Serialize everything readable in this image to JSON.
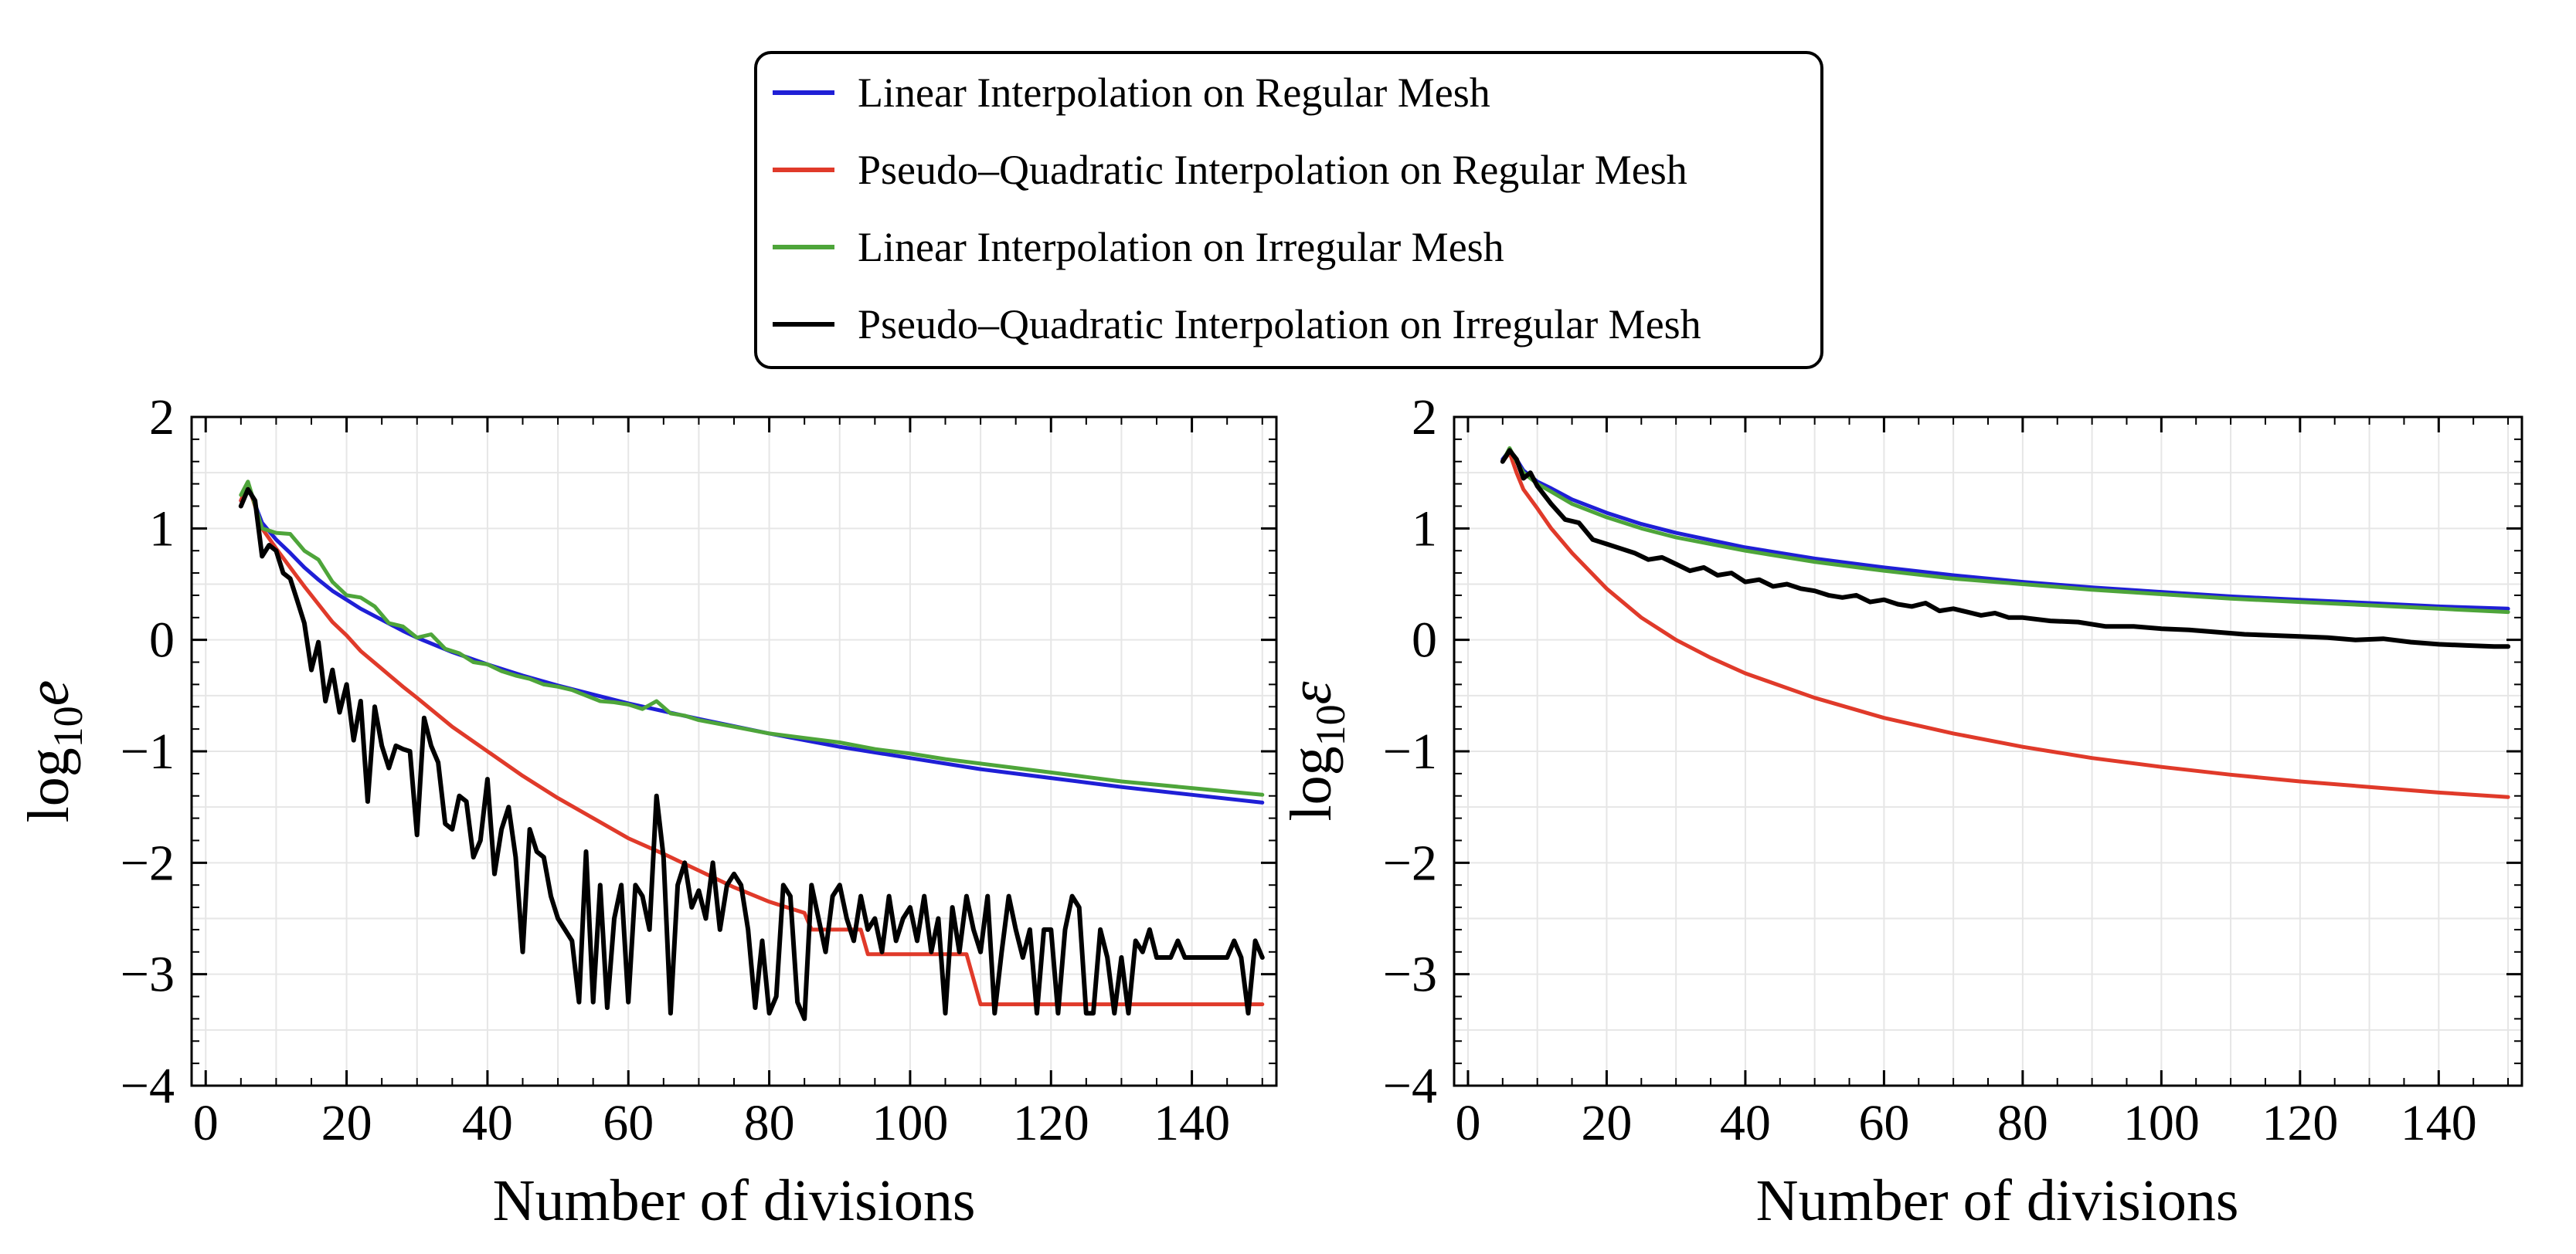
{
  "legend": {
    "items": [
      {
        "label": "Linear Interpolation on Regular Mesh",
        "color": "#1f1fd6"
      },
      {
        "label": "Pseudo–Quadratic Interpolation on Regular Mesh",
        "color": "#e03a2a"
      },
      {
        "label": "Linear Interpolation on Irregular Mesh",
        "color": "#4ea53a"
      },
      {
        "label": "Pseudo–Quadratic Interpolation on Irregular Mesh",
        "color": "#000000"
      }
    ]
  },
  "chart_data": [
    {
      "type": "line",
      "title": "",
      "xlabel": "Number of divisions",
      "ylabel_base": "log",
      "ylabel_sub": "10",
      "ylabel_var": "e",
      "xlim": [
        -2,
        152
      ],
      "ylim": [
        -4,
        2
      ],
      "xticks": [
        0,
        20,
        40,
        60,
        80,
        100,
        120,
        140
      ],
      "yticks": [
        2,
        1,
        0,
        -1,
        -2,
        -3,
        -4
      ],
      "ytick_labels": [
        "2",
        "1",
        "0",
        "−1",
        "−2",
        "−3",
        "−4"
      ],
      "grid": true,
      "series": [
        {
          "name": "Linear Interpolation on Regular Mesh",
          "color": "#1f1fd6",
          "x": [
            5,
            6,
            8,
            10,
            12,
            14,
            16,
            18,
            20,
            22,
            25,
            28,
            30,
            35,
            40,
            45,
            50,
            55,
            60,
            70,
            80,
            90,
            100,
            110,
            120,
            130,
            140,
            150
          ],
          "y": [
            1.25,
            1.38,
            1.05,
            0.9,
            0.78,
            0.65,
            0.54,
            0.44,
            0.36,
            0.28,
            0.18,
            0.08,
            0.02,
            -0.11,
            -0.22,
            -0.32,
            -0.41,
            -0.49,
            -0.57,
            -0.71,
            -0.84,
            -0.96,
            -1.06,
            -1.16,
            -1.24,
            -1.32,
            -1.39,
            -1.46
          ]
        },
        {
          "name": "Pseudo–Quadratic Interpolation on Regular Mesh",
          "color": "#e03a2a",
          "x": [
            5,
            6,
            8,
            10,
            12,
            14,
            16,
            18,
            20,
            22,
            25,
            28,
            30,
            35,
            40,
            45,
            50,
            55,
            60,
            65,
            70,
            75,
            80,
            85,
            86,
            90,
            93,
            94,
            100,
            108,
            110,
            120,
            130,
            140,
            150
          ],
          "y": [
            1.25,
            1.4,
            1.0,
            0.82,
            0.65,
            0.48,
            0.32,
            0.16,
            0.04,
            -0.1,
            -0.26,
            -0.42,
            -0.52,
            -0.78,
            -1.0,
            -1.22,
            -1.42,
            -1.6,
            -1.78,
            -1.92,
            -2.07,
            -2.22,
            -2.35,
            -2.45,
            -2.6,
            -2.6,
            -2.6,
            -2.82,
            -2.82,
            -2.82,
            -3.27,
            -3.27,
            -3.27,
            -3.27,
            -3.27
          ]
        },
        {
          "name": "Linear Interpolation on Irregular Mesh",
          "color": "#4ea53a",
          "x": [
            5,
            6,
            8,
            10,
            12,
            14,
            16,
            18,
            20,
            22,
            24,
            26,
            28,
            30,
            32,
            34,
            36,
            38,
            40,
            42,
            44,
            46,
            48,
            50,
            52,
            54,
            56,
            58,
            60,
            62,
            64,
            66,
            68,
            70,
            75,
            80,
            85,
            90,
            95,
            100,
            105,
            110,
            115,
            120,
            125,
            130,
            135,
            140,
            145,
            150
          ],
          "y": [
            1.3,
            1.42,
            1.0,
            0.96,
            0.95,
            0.8,
            0.72,
            0.52,
            0.4,
            0.38,
            0.3,
            0.15,
            0.12,
            0.02,
            0.05,
            -0.08,
            -0.12,
            -0.2,
            -0.22,
            -0.28,
            -0.32,
            -0.35,
            -0.4,
            -0.42,
            -0.45,
            -0.5,
            -0.55,
            -0.56,
            -0.58,
            -0.62,
            -0.55,
            -0.66,
            -0.68,
            -0.72,
            -0.78,
            -0.84,
            -0.88,
            -0.92,
            -0.98,
            -1.02,
            -1.07,
            -1.11,
            -1.15,
            -1.19,
            -1.23,
            -1.27,
            -1.3,
            -1.33,
            -1.36,
            -1.39
          ]
        },
        {
          "name": "Pseudo–Quadratic Interpolation on Irregular Mesh",
          "color": "#000000",
          "x": [
            5,
            6,
            7,
            8,
            9,
            10,
            11,
            12,
            13,
            14,
            15,
            16,
            17,
            18,
            19,
            20,
            21,
            22,
            23,
            24,
            25,
            26,
            27,
            28,
            29,
            30,
            31,
            32,
            33,
            34,
            35,
            36,
            37,
            38,
            39,
            40,
            41,
            42,
            43,
            44,
            45,
            46,
            47,
            48,
            49,
            50,
            51,
            52,
            53,
            54,
            55,
            56,
            57,
            58,
            59,
            60,
            61,
            62,
            63,
            64,
            65,
            66,
            67,
            68,
            69,
            70,
            71,
            72,
            73,
            74,
            75,
            76,
            77,
            78,
            79,
            80,
            81,
            82,
            83,
            84,
            85,
            86,
            87,
            88,
            89,
            90,
            91,
            92,
            93,
            94,
            95,
            96,
            97,
            98,
            99,
            100,
            101,
            102,
            103,
            104,
            105,
            106,
            107,
            108,
            109,
            110,
            111,
            112,
            113,
            114,
            115,
            116,
            117,
            118,
            119,
            120,
            121,
            122,
            123,
            124,
            125,
            126,
            127,
            128,
            129,
            130,
            131,
            132,
            133,
            134,
            135,
            136,
            137,
            138,
            139,
            140,
            141,
            142,
            143,
            144,
            145,
            146,
            147,
            148,
            149,
            150
          ],
          "y": [
            1.2,
            1.35,
            1.25,
            0.75,
            0.85,
            0.8,
            0.6,
            0.55,
            0.35,
            0.15,
            -0.27,
            -0.02,
            -0.55,
            -0.27,
            -0.65,
            -0.4,
            -0.9,
            -0.55,
            -1.45,
            -0.6,
            -0.95,
            -1.15,
            -0.95,
            -0.98,
            -1.0,
            -1.75,
            -0.7,
            -0.95,
            -1.1,
            -1.65,
            -1.7,
            -1.4,
            -1.45,
            -1.95,
            -1.8,
            -1.25,
            -2.1,
            -1.7,
            -1.5,
            -1.95,
            -2.8,
            -1.7,
            -1.9,
            -1.95,
            -2.3,
            -2.5,
            -2.6,
            -2.7,
            -3.25,
            -1.9,
            -3.25,
            -2.2,
            -3.3,
            -2.5,
            -2.2,
            -3.25,
            -2.2,
            -2.3,
            -2.6,
            -1.4,
            -1.95,
            -3.35,
            -2.2,
            -2.0,
            -2.4,
            -2.25,
            -2.5,
            -2.0,
            -2.6,
            -2.2,
            -2.1,
            -2.2,
            -2.6,
            -3.3,
            -2.7,
            -3.35,
            -3.2,
            -2.2,
            -2.3,
            -3.25,
            -3.4,
            -2.2,
            -2.5,
            -2.8,
            -2.3,
            -2.2,
            -2.5,
            -2.7,
            -2.3,
            -2.6,
            -2.5,
            -2.8,
            -2.3,
            -2.7,
            -2.5,
            -2.4,
            -2.7,
            -2.3,
            -2.8,
            -2.5,
            -3.35,
            -2.4,
            -2.8,
            -2.3,
            -2.6,
            -2.8,
            -2.3,
            -3.35,
            -2.8,
            -2.3,
            -2.6,
            -2.85,
            -2.6,
            -3.35,
            -2.6,
            -2.6,
            -3.35,
            -2.6,
            -2.3,
            -2.4,
            -3.35,
            -3.35,
            -2.6,
            -2.85,
            -3.35,
            -2.85,
            -3.35,
            -2.7,
            -2.8,
            -2.6,
            -2.85,
            -2.85,
            -2.85,
            -2.7,
            -2.85,
            -2.85,
            -2.85,
            -2.85,
            -2.85,
            -2.85,
            -2.85,
            -2.7,
            -2.85,
            -3.35,
            -2.7,
            -2.85
          ]
        }
      ]
    },
    {
      "type": "line",
      "title": "",
      "xlabel": "Number of divisions",
      "ylabel_base": "log",
      "ylabel_sub": "10",
      "ylabel_var": "ε",
      "xlim": [
        -2,
        152
      ],
      "ylim": [
        -4,
        2
      ],
      "xticks": [
        0,
        20,
        40,
        60,
        80,
        100,
        120,
        140
      ],
      "yticks": [
        2,
        1,
        0,
        -1,
        -2,
        -3,
        -4
      ],
      "ytick_labels": [
        "2",
        "1",
        "0",
        "−1",
        "−2",
        "−3",
        "−4"
      ],
      "grid": true,
      "series": [
        {
          "name": "Linear Interpolation on Regular Mesh",
          "color": "#1f1fd6",
          "x": [
            5,
            6,
            7,
            8,
            10,
            12,
            15,
            20,
            25,
            30,
            40,
            50,
            60,
            70,
            80,
            90,
            100,
            110,
            120,
            130,
            140,
            150
          ],
          "y": [
            1.62,
            1.7,
            1.62,
            1.52,
            1.42,
            1.36,
            1.26,
            1.14,
            1.04,
            0.96,
            0.83,
            0.73,
            0.65,
            0.58,
            0.52,
            0.47,
            0.43,
            0.39,
            0.36,
            0.33,
            0.3,
            0.28
          ]
        },
        {
          "name": "Pseudo–Quadratic Interpolation on Regular Mesh",
          "color": "#e03a2a",
          "x": [
            5,
            6,
            7,
            8,
            10,
            12,
            15,
            20,
            25,
            30,
            35,
            40,
            50,
            60,
            70,
            80,
            90,
            100,
            110,
            120,
            130,
            140,
            150
          ],
          "y": [
            1.6,
            1.68,
            1.5,
            1.35,
            1.18,
            1.0,
            0.78,
            0.46,
            0.2,
            0.0,
            -0.16,
            -0.3,
            -0.52,
            -0.7,
            -0.84,
            -0.96,
            -1.06,
            -1.14,
            -1.21,
            -1.27,
            -1.32,
            -1.37,
            -1.41
          ]
        },
        {
          "name": "Linear Interpolation on Irregular Mesh",
          "color": "#4ea53a",
          "x": [
            5,
            6,
            7,
            8,
            10,
            12,
            15,
            20,
            25,
            30,
            40,
            50,
            60,
            70,
            80,
            90,
            100,
            110,
            120,
            130,
            140,
            150
          ],
          "y": [
            1.6,
            1.72,
            1.6,
            1.5,
            1.4,
            1.33,
            1.22,
            1.1,
            1.0,
            0.92,
            0.8,
            0.7,
            0.62,
            0.55,
            0.5,
            0.45,
            0.41,
            0.37,
            0.34,
            0.31,
            0.28,
            0.25
          ]
        },
        {
          "name": "Pseudo–Quadratic Interpolation on Irregular Mesh",
          "color": "#000000",
          "x": [
            5,
            6,
            7,
            8,
            9,
            10,
            12,
            14,
            16,
            18,
            20,
            22,
            24,
            26,
            28,
            30,
            32,
            34,
            36,
            38,
            40,
            42,
            44,
            46,
            48,
            50,
            52,
            54,
            56,
            58,
            60,
            62,
            64,
            66,
            68,
            70,
            72,
            74,
            76,
            78,
            80,
            84,
            88,
            92,
            96,
            100,
            104,
            108,
            112,
            116,
            120,
            124,
            128,
            132,
            136,
            140,
            144,
            148,
            150
          ],
          "y": [
            1.6,
            1.7,
            1.62,
            1.45,
            1.5,
            1.38,
            1.22,
            1.08,
            1.05,
            0.9,
            0.86,
            0.82,
            0.78,
            0.72,
            0.74,
            0.68,
            0.62,
            0.65,
            0.58,
            0.6,
            0.52,
            0.54,
            0.48,
            0.5,
            0.46,
            0.44,
            0.4,
            0.38,
            0.4,
            0.34,
            0.36,
            0.32,
            0.3,
            0.33,
            0.26,
            0.28,
            0.25,
            0.22,
            0.24,
            0.2,
            0.2,
            0.17,
            0.16,
            0.12,
            0.12,
            0.1,
            0.09,
            0.07,
            0.05,
            0.04,
            0.03,
            0.02,
            0.0,
            0.01,
            -0.02,
            -0.04,
            -0.05,
            -0.06,
            -0.06
          ]
        }
      ]
    }
  ]
}
